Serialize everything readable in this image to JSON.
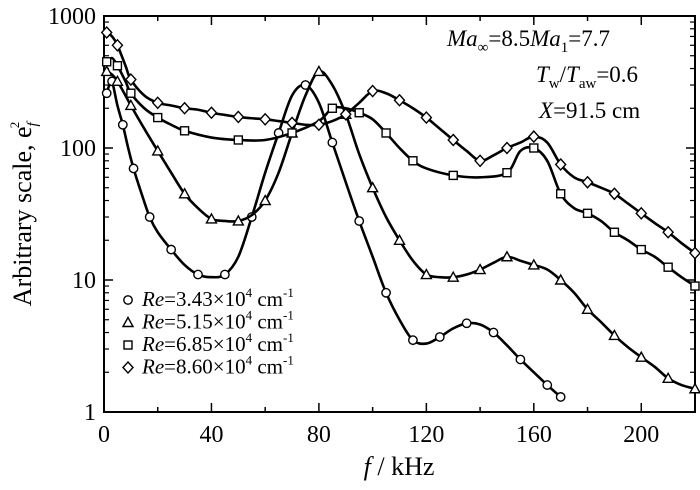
{
  "chart_data": {
    "type": "line",
    "title": "",
    "xlabel": "f / kHz",
    "ylabel": "Arbitrary scale, e_f^2",
    "xlim": [
      0,
      220
    ],
    "ylim": [
      1,
      1000
    ],
    "yscale": "log",
    "x_ticks": [
      0,
      40,
      80,
      120,
      160,
      200
    ],
    "x_tick_labels": [
      "0",
      "40",
      "80",
      "120",
      "160",
      "200"
    ],
    "y_ticks": [
      1,
      10,
      100,
      1000
    ],
    "y_tick_labels": [
      "1",
      "10",
      "100",
      "1000"
    ],
    "grid": false,
    "legend_position": "bottom-left",
    "annotations": [
      {
        "lines": [
          "Ma∞=8.5",
          "Ma1=7.7"
        ]
      },
      {
        "lines": [
          "Tw/Taw=0.6"
        ]
      },
      {
        "lines": [
          "X=91.5 cm"
        ]
      }
    ],
    "series": [
      {
        "name": "Re=3.43×10^4 cm^-1",
        "marker": "circle",
        "x": [
          1,
          2,
          3,
          5,
          7,
          9,
          11,
          14,
          17,
          20,
          25,
          30,
          35,
          40,
          45,
          50,
          55,
          60,
          65,
          70,
          75,
          80,
          85,
          90,
          95,
          100,
          105,
          110,
          115,
          120,
          125,
          130,
          135,
          140,
          145,
          150,
          155,
          160,
          165,
          170
        ],
        "y": [
          260,
          300,
          320,
          210,
          150,
          100,
          70,
          45,
          30,
          23,
          17,
          13,
          11,
          10.5,
          11,
          15,
          30,
          65,
          130,
          250,
          300,
          220,
          110,
          55,
          28,
          15,
          8,
          5,
          3.5,
          3.3,
          3.7,
          4.3,
          4.7,
          4.6,
          4,
          3.2,
          2.5,
          2.0,
          1.6,
          1.3
        ]
      },
      {
        "name": "Re=5.15×10^4 cm^-1",
        "marker": "triangle",
        "x": [
          1,
          3,
          5,
          8,
          10,
          15,
          20,
          25,
          30,
          35,
          40,
          45,
          50,
          55,
          60,
          65,
          70,
          75,
          80,
          85,
          90,
          95,
          100,
          105,
          110,
          115,
          120,
          125,
          130,
          135,
          140,
          145,
          150,
          155,
          160,
          165,
          170,
          175,
          180,
          185,
          190,
          195,
          200,
          205,
          210,
          215,
          220
        ],
        "y": [
          380,
          360,
          320,
          250,
          210,
          140,
          95,
          65,
          45,
          35,
          29,
          28,
          28,
          31,
          40,
          65,
          130,
          250,
          380,
          300,
          180,
          90,
          50,
          30,
          20,
          14,
          11,
          10.5,
          10.5,
          11,
          12,
          13.5,
          15,
          14,
          13,
          12,
          10,
          8,
          6,
          4.8,
          3.8,
          3.1,
          2.6,
          2.2,
          1.8,
          1.6,
          1.5
        ]
      },
      {
        "name": "Re=6.85×10^4 cm^-1",
        "marker": "square",
        "x": [
          1,
          3,
          5,
          8,
          10,
          15,
          20,
          25,
          30,
          40,
          50,
          60,
          70,
          80,
          85,
          90,
          95,
          100,
          105,
          110,
          115,
          120,
          130,
          140,
          150,
          155,
          160,
          165,
          170,
          175,
          180,
          185,
          190,
          195,
          200,
          205,
          210,
          215,
          220
        ],
        "y": [
          450,
          480,
          420,
          320,
          260,
          200,
          170,
          150,
          135,
          120,
          115,
          115,
          130,
          160,
          200,
          200,
          185,
          165,
          130,
          100,
          80,
          70,
          62,
          60,
          65,
          95,
          100,
          80,
          45,
          35,
          32,
          28,
          23,
          20,
          17,
          15,
          12.5,
          10.5,
          9
        ]
      },
      {
        "name": "Re=8.60×10^4 cm^-1",
        "marker": "diamond",
        "x": [
          1,
          3,
          5,
          8,
          10,
          15,
          20,
          25,
          30,
          35,
          40,
          45,
          50,
          55,
          60,
          65,
          70,
          75,
          80,
          85,
          90,
          95,
          100,
          105,
          110,
          115,
          120,
          125,
          130,
          135,
          140,
          145,
          150,
          155,
          160,
          165,
          170,
          175,
          180,
          185,
          190,
          195,
          200,
          205,
          210,
          215,
          220
        ],
        "y": [
          750,
          700,
          600,
          420,
          330,
          250,
          220,
          210,
          200,
          195,
          185,
          178,
          172,
          168,
          165,
          160,
          155,
          150,
          150,
          160,
          180,
          220,
          270,
          260,
          230,
          200,
          170,
          140,
          115,
          95,
          80,
          88,
          100,
          110,
          122,
          110,
          75,
          60,
          55,
          50,
          45,
          38,
          32,
          27,
          23,
          19,
          16
        ]
      }
    ]
  }
}
